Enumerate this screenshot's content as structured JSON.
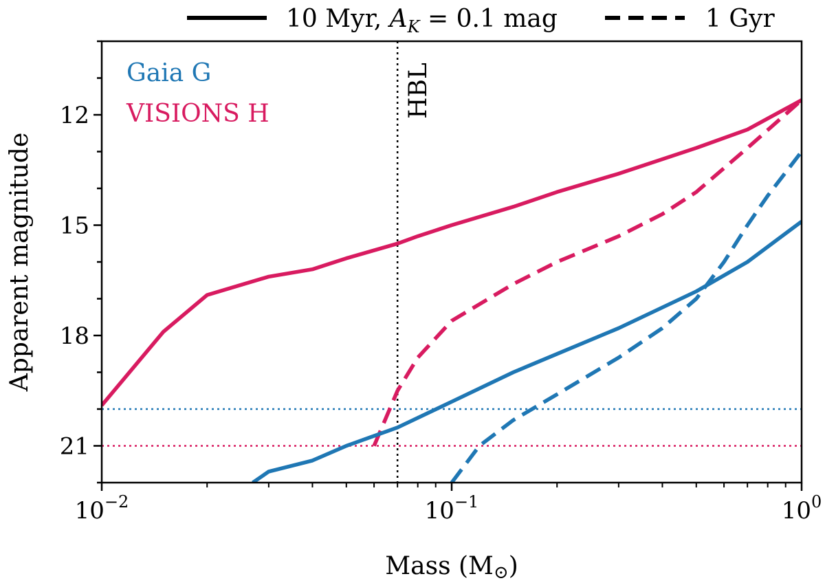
{
  "chart_data": {
    "type": "line",
    "xscale": "log",
    "xlim": [
      0.01,
      1
    ],
    "ylim": [
      22,
      10
    ],
    "xlabel": "Mass (M",
    "xlabel_symbol": "⊙",
    "xlabel_close": ")",
    "ylabel": "Apparent magnitude",
    "xticks": [
      {
        "value": 0.01,
        "base": "10",
        "exp": "−2"
      },
      {
        "value": 0.1,
        "base": "10",
        "exp": "−1"
      },
      {
        "value": 1,
        "base": "10",
        "exp": "0"
      }
    ],
    "yticks": [
      12,
      15,
      18,
      21
    ],
    "legend": {
      "solid": {
        "prefix": "10 Myr, ",
        "symbol": "A",
        "sub": "K",
        "suffix": " = 0.1 mag"
      },
      "dashed": {
        "label": "1 Gyr"
      }
    },
    "band_labels": [
      {
        "text": "Gaia G",
        "color": "#1f77b4"
      },
      {
        "text": "VISIONS H",
        "color": "#d81b60"
      }
    ],
    "vline": {
      "x": 0.07,
      "label": "HBL"
    },
    "hlines": [
      {
        "y": 20.0,
        "color": "#1f77b4"
      },
      {
        "y": 21.0,
        "color": "#d81b60"
      }
    ],
    "series": [
      {
        "name": "VISIONS H 10 Myr",
        "color": "#d81b60",
        "style": "solid",
        "x": [
          0.01,
          0.015,
          0.02,
          0.03,
          0.04,
          0.05,
          0.07,
          0.08,
          0.1,
          0.15,
          0.2,
          0.3,
          0.5,
          0.7,
          1.0
        ],
        "y": [
          19.9,
          17.9,
          16.9,
          16.4,
          16.2,
          15.9,
          15.5,
          15.3,
          15.0,
          14.5,
          14.1,
          13.6,
          12.9,
          12.4,
          11.6
        ]
      },
      {
        "name": "VISIONS H 1 Gyr",
        "color": "#d81b60",
        "style": "dashed",
        "x": [
          0.06,
          0.07,
          0.08,
          0.1,
          0.15,
          0.2,
          0.3,
          0.4,
          0.5,
          0.7,
          1.0
        ],
        "y": [
          21.0,
          19.5,
          18.6,
          17.6,
          16.6,
          16.0,
          15.3,
          14.7,
          14.1,
          12.9,
          11.6
        ]
      },
      {
        "name": "Gaia G 10 Myr",
        "color": "#1f77b4",
        "style": "solid",
        "x": [
          0.027,
          0.03,
          0.04,
          0.05,
          0.07,
          0.1,
          0.15,
          0.2,
          0.3,
          0.5,
          0.7,
          1.0
        ],
        "y": [
          22.0,
          21.7,
          21.4,
          21.0,
          20.5,
          19.8,
          19.0,
          18.5,
          17.8,
          16.8,
          16.0,
          14.9
        ]
      },
      {
        "name": "Gaia G 1 Gyr",
        "color": "#1f77b4",
        "style": "dashed",
        "x": [
          0.1,
          0.12,
          0.15,
          0.2,
          0.3,
          0.4,
          0.5,
          0.6,
          0.7,
          0.8,
          1.0
        ],
        "y": [
          22.0,
          21.0,
          20.3,
          19.6,
          18.6,
          17.8,
          17.0,
          16.0,
          15.0,
          14.2,
          13.0
        ]
      }
    ]
  }
}
